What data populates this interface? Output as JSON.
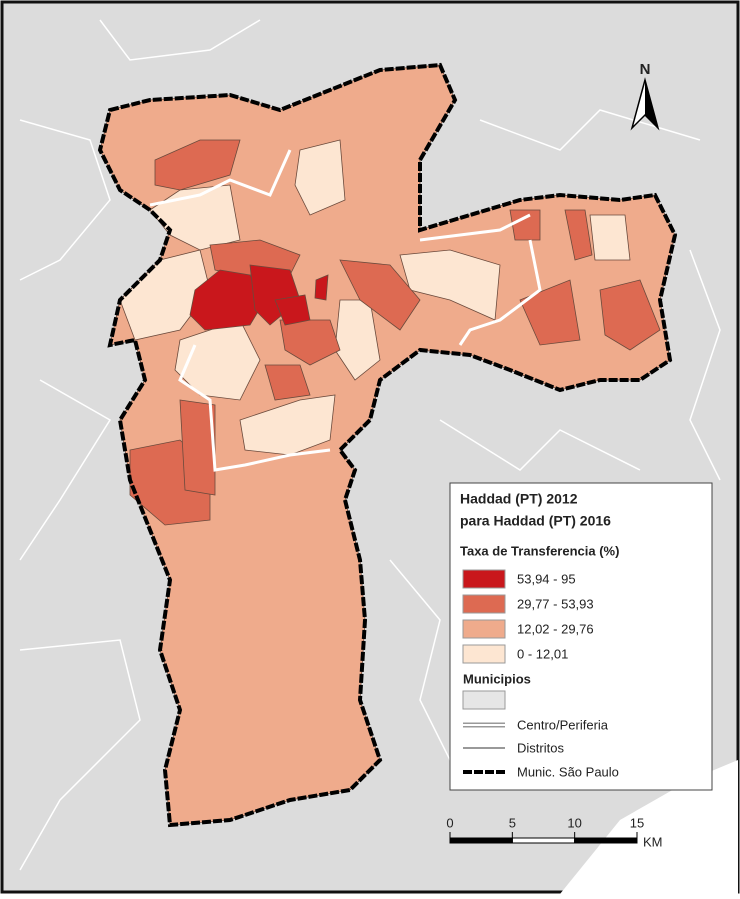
{
  "north_label": "N",
  "legend": {
    "title": "Haddad (PT) 2012",
    "subtitle": "para Haddad (PT) 2016",
    "class_title": "Taxa de Transferencia (%)",
    "classes": [
      {
        "label": "53,94 - 95",
        "color": "#c9171c"
      },
      {
        "label": "29,77 - 53,93",
        "color": "#dd6a52"
      },
      {
        "label": "12,02 - 29,76",
        "color": "#efab8c"
      },
      {
        "label": "0 - 12,01",
        "color": "#fde6d2"
      }
    ],
    "municipios": {
      "label": "Municipios",
      "color": "#e6e6e6"
    },
    "centro": "Centro/Periferia",
    "distritos": "Distritos",
    "munic": "Munic. São Paulo"
  },
  "scale_bar": {
    "ticks": [
      0,
      5,
      10,
      15
    ],
    "unit": "KM"
  }
}
